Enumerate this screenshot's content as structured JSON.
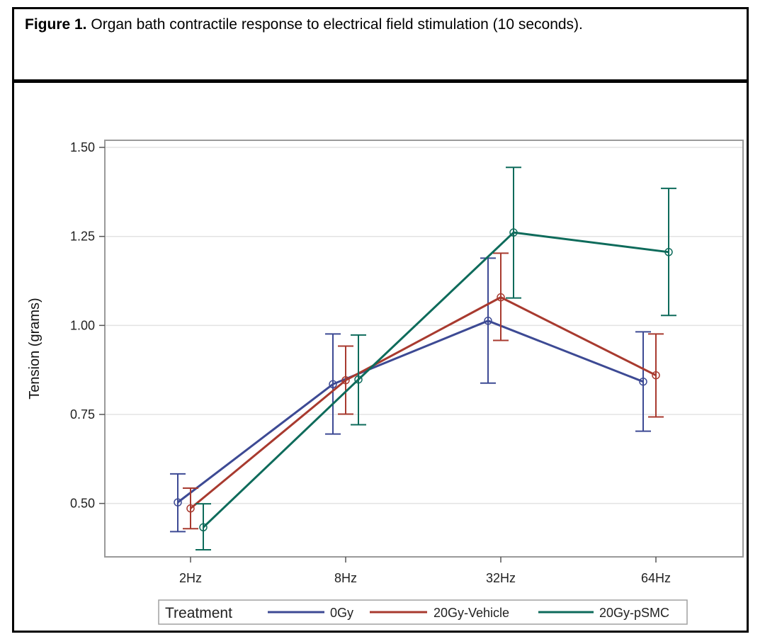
{
  "figure": {
    "caption_label": "Figure 1.",
    "caption_text": " Organ bath contractile response to electrical field stimulation (10 seconds)."
  },
  "chart_data": {
    "type": "line",
    "categories": [
      "2Hz",
      "8Hz",
      "32Hz",
      "64Hz"
    ],
    "ylabel": "Tension (grams)",
    "xlabel": "",
    "ylim": [
      0.35,
      1.52
    ],
    "yticks": [
      0.5,
      0.75,
      1.0,
      1.25,
      1.5
    ],
    "ytick_labels": [
      "0.50",
      "0.75",
      "1.00",
      "1.25",
      "1.50"
    ],
    "grid": "horizontal",
    "legend": {
      "title": "Treatment",
      "placement": "bottom"
    },
    "series": [
      {
        "name": "0Gy",
        "color": "#3d4a94",
        "values": [
          0.503,
          0.835,
          1.013,
          0.842
        ],
        "lower": [
          0.421,
          0.695,
          0.838,
          0.703
        ],
        "upper": [
          0.583,
          0.976,
          1.189,
          0.982
        ]
      },
      {
        "name": "20Gy-Vehicle",
        "color": "#a83a2f",
        "values": [
          0.486,
          0.846,
          1.079,
          0.86
        ],
        "lower": [
          0.429,
          0.751,
          0.958,
          0.743
        ],
        "upper": [
          0.543,
          0.942,
          1.203,
          0.976
        ]
      },
      {
        "name": "20Gy-pSMC",
        "color": "#0e6b5b",
        "values": [
          0.433,
          0.848,
          1.261,
          1.206
        ],
        "lower": [
          0.37,
          0.721,
          1.077,
          1.028
        ],
        "upper": [
          0.499,
          0.973,
          1.444,
          1.385
        ]
      }
    ]
  }
}
